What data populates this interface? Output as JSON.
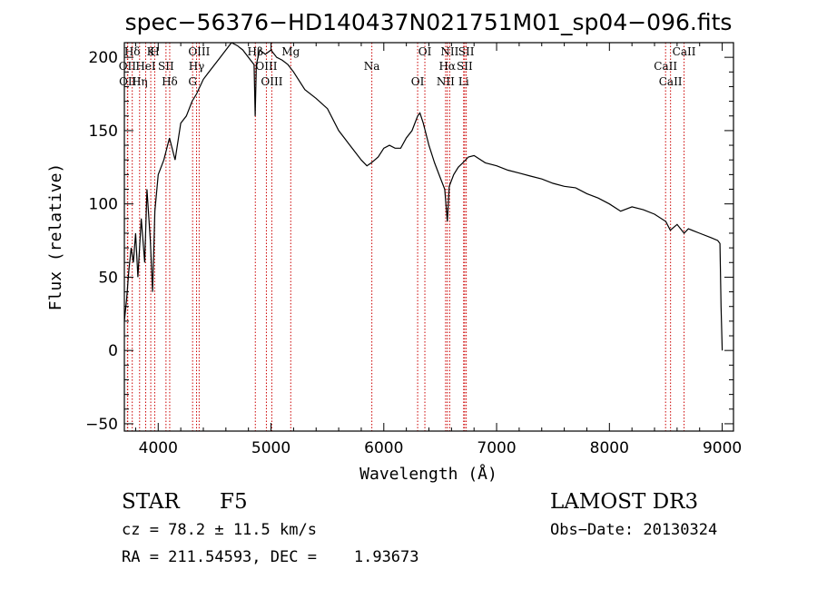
{
  "chart_data": {
    "type": "line",
    "title": "spec−56376−HD140437N021751M01_sp04−096.fits",
    "xlabel": "Wavelength (Å)",
    "ylabel": "Flux (relative)",
    "xlim": [
      3700,
      9100
    ],
    "ylim": [
      -55,
      210
    ],
    "xticks": [
      4000,
      5000,
      6000,
      7000,
      8000,
      9000
    ],
    "yticks": [
      -50,
      0,
      50,
      100,
      150,
      200
    ],
    "ytick_labels": [
      "−50",
      "0",
      "50",
      "100",
      "150",
      "200"
    ],
    "series": [
      {
        "name": "flux",
        "color": "#000000",
        "x": [
          3700,
          3720,
          3740,
          3760,
          3780,
          3800,
          3820,
          3850,
          3880,
          3900,
          3930,
          3950,
          3970,
          4000,
          4050,
          4100,
          4150,
          4200,
          4250,
          4300,
          4340,
          4400,
          4450,
          4500,
          4550,
          4600,
          4650,
          4700,
          4750,
          4800,
          4850,
          4860,
          4870,
          4900,
          4950,
          5000,
          5050,
          5100,
          5150,
          5200,
          5300,
          5400,
          5500,
          5600,
          5700,
          5800,
          5850,
          5890,
          5950,
          6000,
          6050,
          6100,
          6150,
          6200,
          6250,
          6300,
          6320,
          6350,
          6400,
          6450,
          6500,
          6540,
          6563,
          6580,
          6620,
          6660,
          6700,
          6750,
          6800,
          6900,
          7000,
          7100,
          7200,
          7300,
          7400,
          7500,
          7600,
          7700,
          7800,
          7900,
          8000,
          8100,
          8200,
          8300,
          8400,
          8500,
          8540,
          8600,
          8662,
          8700,
          8800,
          8900,
          8960,
          8980,
          8990,
          9000
        ],
        "y": [
          20,
          35,
          55,
          70,
          60,
          80,
          50,
          90,
          60,
          110,
          75,
          40,
          95,
          120,
          130,
          145,
          130,
          155,
          160,
          170,
          175,
          185,
          190,
          195,
          200,
          205,
          210,
          208,
          205,
          200,
          195,
          160,
          195,
          205,
          202,
          205,
          200,
          198,
          195,
          190,
          178,
          172,
          165,
          150,
          140,
          130,
          126,
          128,
          132,
          138,
          140,
          138,
          138,
          145,
          150,
          160,
          162,
          155,
          140,
          128,
          118,
          110,
          88,
          112,
          120,
          125,
          128,
          132,
          133,
          128,
          126,
          123,
          121,
          119,
          117,
          114,
          112,
          111,
          107,
          104,
          100,
          95,
          98,
          96,
          93,
          88,
          82,
          86,
          80,
          83,
          80,
          77,
          75,
          73,
          30,
          0
        ]
      }
    ],
    "line_markers": [
      {
        "label": "Hδ",
        "x": 3770,
        "color": "#cc0000"
      },
      {
        "label": "OII",
        "x": 3727,
        "color": "#cc0000"
      },
      {
        "label": "OII",
        "x": 3730,
        "color": "#cc0000"
      },
      {
        "label": "K",
        "x": 3934,
        "color": "#cc0000"
      },
      {
        "label": "HeI",
        "x": 3889,
        "color": "#cc0000"
      },
      {
        "label": "Hη",
        "x": 3835,
        "color": "#cc0000"
      },
      {
        "label": "H",
        "x": 3969,
        "color": "#cc0000"
      },
      {
        "label": "SII",
        "x": 4069,
        "color": "#cc0000"
      },
      {
        "label": "Hδ",
        "x": 4102,
        "color": "#cc0000"
      },
      {
        "label": "OIII",
        "x": 4363,
        "color": "#cc0000"
      },
      {
        "label": "Hγ",
        "x": 4340,
        "color": "#cc0000"
      },
      {
        "label": "G",
        "x": 4305,
        "color": "#cc0000"
      },
      {
        "label": "Hβ",
        "x": 4861,
        "color": "#cc0000"
      },
      {
        "label": "OIII",
        "x": 4959,
        "color": "#cc0000"
      },
      {
        "label": "OIII",
        "x": 5007,
        "color": "#cc0000"
      },
      {
        "label": "Mg",
        "x": 5175,
        "color": "#cc0000"
      },
      {
        "label": "Na",
        "x": 5894,
        "color": "#cc0000"
      },
      {
        "label": "OI",
        "x": 6300,
        "color": "#cc0000"
      },
      {
        "label": "OI",
        "x": 6364,
        "color": "#cc0000"
      },
      {
        "label": "Hα",
        "x": 6563,
        "color": "#cc0000"
      },
      {
        "label": "NII",
        "x": 6548,
        "color": "#cc0000"
      },
      {
        "label": "NII",
        "x": 6584,
        "color": "#cc0000"
      },
      {
        "label": "SII",
        "x": 6717,
        "color": "#cc0000"
      },
      {
        "label": "Li",
        "x": 6708,
        "color": "#cc0000"
      },
      {
        "label": "SII",
        "x": 6731,
        "color": "#cc0000"
      },
      {
        "label": "CaII",
        "x": 8498,
        "color": "#cc0000"
      },
      {
        "label": "CaII",
        "x": 8542,
        "color": "#cc0000"
      },
      {
        "label": "CaII",
        "x": 8662,
        "color": "#cc0000"
      }
    ]
  },
  "info": {
    "object_class": "STAR",
    "subclass": "F5",
    "survey": "LAMOST DR3",
    "redshift": "cz = 78.2 ± 11.5 km/s",
    "obs_date": "Obs−Date: 20130324",
    "coords": "RA = 211.54593, DEC =    1.93673"
  }
}
